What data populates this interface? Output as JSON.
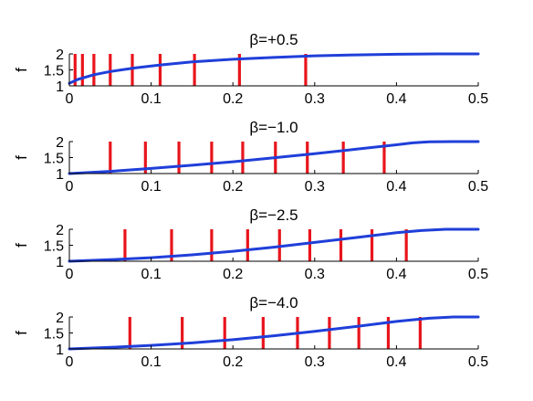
{
  "chart_data": [
    {
      "type": "line",
      "title": "β=+0.5",
      "xlabel": "",
      "ylabel": "f",
      "xlim": [
        0,
        0.5
      ],
      "ylim": [
        1,
        2
      ],
      "xticks": [
        "0",
        "0.1",
        "0.2",
        "0.3",
        "0.4",
        "0.5"
      ],
      "yticks": [
        "1",
        "1.5",
        "2"
      ],
      "curve": {
        "x": [
          0,
          0.01,
          0.03,
          0.05,
          0.08,
          0.11,
          0.15,
          0.2,
          0.25,
          0.3,
          0.35,
          0.4,
          0.45,
          0.5
        ],
        "y": [
          1.08,
          1.2,
          1.35,
          1.45,
          1.56,
          1.65,
          1.75,
          1.83,
          1.89,
          1.94,
          1.97,
          1.99,
          2.0,
          2.0
        ]
      },
      "markers": [
        0.007,
        0.016,
        0.03,
        0.05,
        0.077,
        0.111,
        0.153,
        0.208,
        0.289
      ]
    },
    {
      "type": "line",
      "title": "β=−1.0",
      "xlabel": "",
      "ylabel": "f",
      "xlim": [
        0,
        0.5
      ],
      "ylim": [
        1,
        2
      ],
      "xticks": [
        "0",
        "0.1",
        "0.2",
        "0.3",
        "0.4",
        "0.5"
      ],
      "yticks": [
        "1",
        "1.5",
        "2"
      ],
      "curve": {
        "x": [
          0,
          0.05,
          0.1,
          0.15,
          0.2,
          0.25,
          0.3,
          0.35,
          0.4,
          0.42,
          0.44,
          0.47,
          0.5
        ],
        "y": [
          1.0,
          1.07,
          1.16,
          1.26,
          1.37,
          1.49,
          1.62,
          1.76,
          1.9,
          1.96,
          1.99,
          2.0,
          2.0
        ]
      },
      "markers": [
        0.05,
        0.093,
        0.134,
        0.174,
        0.212,
        0.252,
        0.291,
        0.335,
        0.385
      ]
    },
    {
      "type": "line",
      "title": "β=−2.5",
      "xlabel": "",
      "ylabel": "f",
      "xlim": [
        0,
        0.5
      ],
      "ylim": [
        1,
        2
      ],
      "xticks": [
        "0",
        "0.1",
        "0.2",
        "0.3",
        "0.4",
        "0.5"
      ],
      "yticks": [
        "1",
        "1.5",
        "2"
      ],
      "curve": {
        "x": [
          0,
          0.05,
          0.1,
          0.15,
          0.2,
          0.25,
          0.3,
          0.35,
          0.4,
          0.43,
          0.46,
          0.5
        ],
        "y": [
          1.0,
          1.05,
          1.11,
          1.2,
          1.31,
          1.44,
          1.59,
          1.74,
          1.89,
          1.96,
          2.0,
          2.0
        ]
      },
      "markers": [
        0.068,
        0.125,
        0.174,
        0.218,
        0.257,
        0.294,
        0.332,
        0.37,
        0.412
      ]
    },
    {
      "type": "line",
      "title": "β=−4.0",
      "xlabel": "",
      "ylabel": "f",
      "xlim": [
        0,
        0.5
      ],
      "ylim": [
        1,
        2
      ],
      "xticks": [
        "0",
        "0.1",
        "0.2",
        "0.3",
        "0.4",
        "0.5"
      ],
      "yticks": [
        "1",
        "1.5",
        "2"
      ],
      "curve": {
        "x": [
          0,
          0.05,
          0.1,
          0.15,
          0.2,
          0.25,
          0.3,
          0.35,
          0.4,
          0.44,
          0.47,
          0.5
        ],
        "y": [
          1.0,
          1.05,
          1.11,
          1.19,
          1.29,
          1.41,
          1.55,
          1.7,
          1.86,
          1.96,
          2.0,
          2.0
        ]
      },
      "markers": [
        0.074,
        0.138,
        0.19,
        0.237,
        0.279,
        0.318,
        0.354,
        0.39,
        0.429
      ]
    }
  ],
  "colors": {
    "curve": "#1f3fd9",
    "markers": "#e8141c",
    "axis": "#000000"
  }
}
